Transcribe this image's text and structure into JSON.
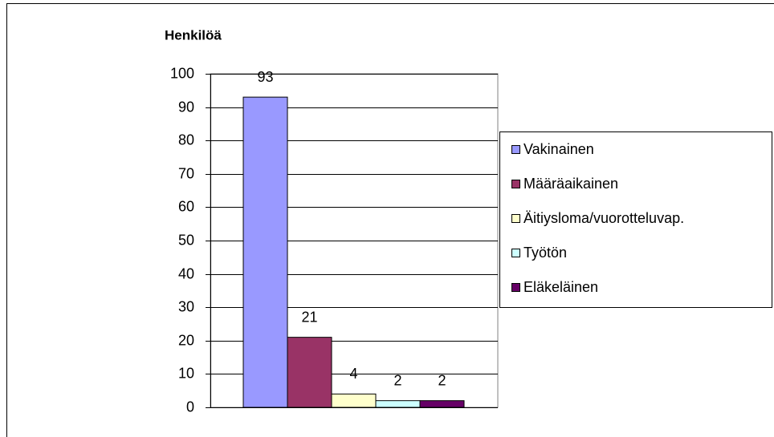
{
  "chart_data": {
    "type": "bar",
    "ylabel": "Henkilöä",
    "categories": [
      null
    ],
    "series": [
      {
        "name": "Vakinainen",
        "color": "#9999ff",
        "values": [
          93
        ]
      },
      {
        "name": "Määräaikainen",
        "color": "#993366",
        "values": [
          21
        ]
      },
      {
        "name": "Äitiysloma/vuorotteluvap.",
        "color": "#ffffcc",
        "values": [
          4
        ]
      },
      {
        "name": "Työtön",
        "color": "#ccffff",
        "values": [
          2
        ]
      },
      {
        "name": "Eläkeläinen",
        "color": "#660066",
        "values": [
          2
        ]
      }
    ],
    "ylim": [
      0,
      100
    ],
    "yticks": [
      0,
      10,
      20,
      30,
      40,
      50,
      60,
      70,
      80,
      90,
      100
    ],
    "grid": true,
    "legend": "right"
  }
}
